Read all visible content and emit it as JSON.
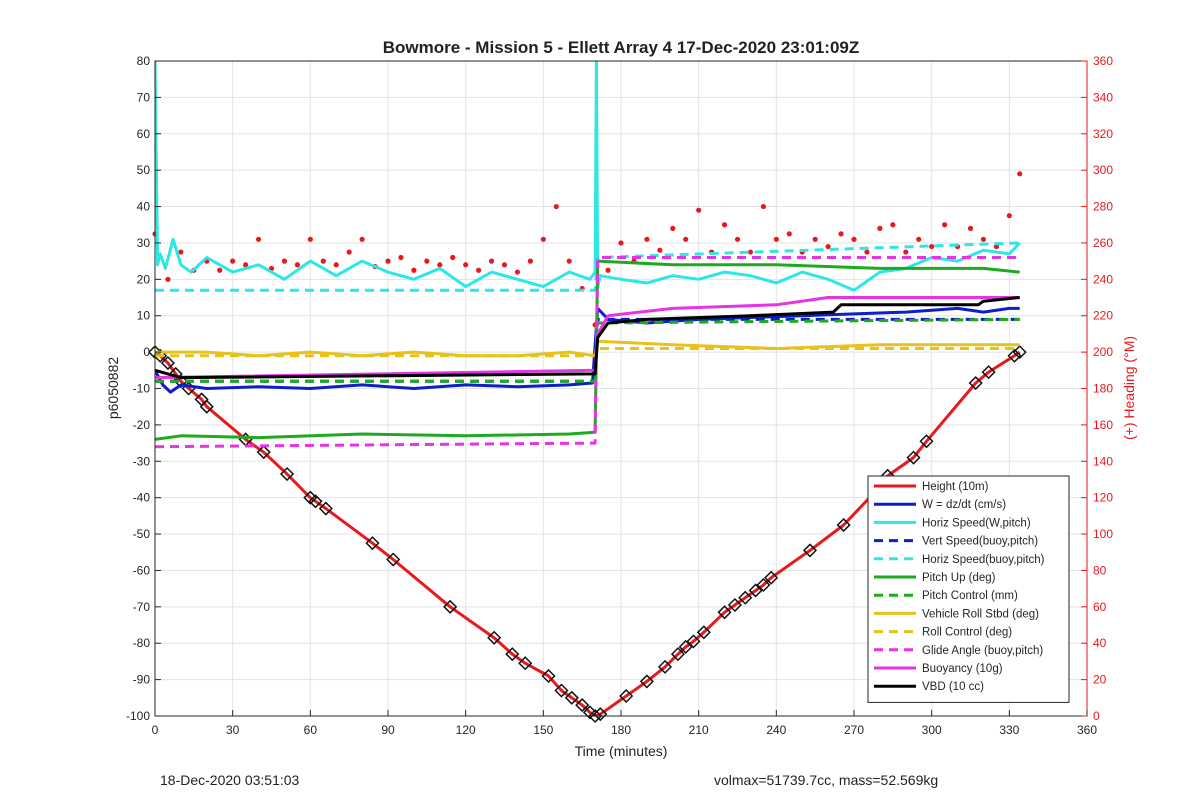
{
  "footer": {
    "timestamp": "18-Dec-2020 03:51:03",
    "stats": "volmax=51739.7cc, mass=52.569kg"
  },
  "chart_data": {
    "type": "line",
    "title": "Bowmore - Mission 5 - Ellett Array 4 17-Dec-2020 23:01:09Z",
    "xlabel": "Time (minutes)",
    "ylabel": "p6050882",
    "y2label": "(+) Heading (°M)",
    "xlim": [
      0,
      360
    ],
    "ylim": [
      -100,
      80
    ],
    "y2lim": [
      0,
      360
    ],
    "xticks": [
      0,
      30,
      60,
      90,
      120,
      150,
      180,
      210,
      240,
      270,
      300,
      330,
      360
    ],
    "yticks": [
      80,
      70,
      60,
      50,
      40,
      30,
      20,
      10,
      0,
      -10,
      -20,
      -30,
      -40,
      -50,
      -60,
      -70,
      -80,
      -90,
      -100
    ],
    "y2ticks": [
      360,
      340,
      320,
      300,
      280,
      260,
      240,
      220,
      200,
      180,
      160,
      140,
      120,
      100,
      80,
      60,
      40,
      20,
      0
    ],
    "grid": true,
    "legend_position": "bottom-right",
    "series": [
      {
        "name": "Height (10m)",
        "color": "#e8191c",
        "style": "solid",
        "marker": "diamond",
        "x": [
          0,
          2,
          5,
          8,
          10,
          13,
          18,
          20,
          35,
          42,
          51,
          60,
          62,
          66,
          84,
          92,
          114,
          131,
          138,
          143,
          152,
          157,
          161,
          165,
          168,
          170,
          172,
          182,
          190,
          197,
          202,
          205,
          208,
          212,
          220,
          224,
          228,
          232,
          235,
          238,
          253,
          266,
          280,
          283,
          293,
          298,
          317,
          322,
          332,
          334
        ],
        "y": [
          0,
          -1,
          -3,
          -6,
          -8,
          -10,
          -13,
          -15,
          -24,
          -27.5,
          -33.5,
          -40,
          -41,
          -43,
          -52.5,
          -57,
          -70,
          -78.5,
          -83,
          -85.5,
          -89,
          -93,
          -95,
          -97,
          -99,
          -100,
          -99.5,
          -94.5,
          -90.5,
          -86.5,
          -83,
          -81,
          -79.5,
          -77,
          -71.5,
          -69.5,
          -67.5,
          -65.5,
          -64,
          -62,
          -54.5,
          -47.5,
          -37,
          -34,
          -29,
          -24.5,
          -8.5,
          -5.5,
          -1,
          0
        ]
      },
      {
        "name": "W = dz/dt (cm/s)",
        "color": "#0c1fc8",
        "style": "solid",
        "x": [
          0,
          3,
          6,
          10,
          20,
          40,
          60,
          80,
          100,
          120,
          140,
          160,
          169,
          171,
          175,
          190,
          210,
          230,
          250,
          270,
          290,
          310,
          320,
          330,
          334
        ],
        "y": [
          -5,
          -9,
          -11,
          -9,
          -10,
          -9.5,
          -10,
          -9,
          -10,
          -9,
          -9.5,
          -9,
          -8.5,
          12,
          9,
          8,
          9,
          9.5,
          10,
          10.5,
          11,
          12,
          11,
          12,
          12
        ]
      },
      {
        "name": "Horiz Speed(W,pitch)",
        "color": "#2de6e6",
        "style": "solid",
        "x": [
          0,
          1,
          2,
          4,
          7,
          10,
          14,
          20,
          30,
          40,
          50,
          60,
          70,
          80,
          90,
          100,
          110,
          120,
          130,
          140,
          150,
          160,
          168,
          170,
          170.5,
          171,
          172,
          180,
          190,
          200,
          210,
          220,
          230,
          240,
          250,
          260,
          270,
          280,
          290,
          300,
          310,
          320,
          330,
          334
        ],
        "y": [
          80,
          24,
          27,
          23,
          31,
          24,
          22,
          26,
          22,
          24,
          20,
          25,
          21,
          25,
          22,
          20,
          23,
          18,
          22,
          20,
          18,
          22,
          20,
          22,
          80,
          18,
          21,
          20,
          19,
          21,
          20,
          22,
          21,
          19,
          22,
          20,
          17,
          22,
          23,
          26,
          25,
          28,
          27,
          30
        ]
      },
      {
        "name": "Vert Speed(buoy,pitch)",
        "color": "#0c1fc8",
        "style": "dashed",
        "x": [
          0,
          170,
          171,
          334
        ],
        "y": [
          -8,
          -8,
          9,
          9
        ]
      },
      {
        "name": "Horiz Speed(buoy,pitch)",
        "color": "#2de6e6",
        "style": "dashed",
        "x": [
          0,
          170,
          171,
          334
        ],
        "y": [
          17,
          17,
          26,
          30
        ]
      },
      {
        "name": "Pitch Up (deg)",
        "color": "#1eaa1e",
        "style": "solid",
        "x": [
          0,
          10,
          40,
          80,
          120,
          160,
          170,
          171,
          200,
          240,
          280,
          320,
          334
        ],
        "y": [
          -24,
          -23,
          -23.5,
          -22.5,
          -23,
          -22.5,
          -22,
          25,
          24,
          24,
          23,
          23,
          22
        ]
      },
      {
        "name": "Pitch Control (mm)",
        "color": "#1eaa1e",
        "style": "dashed",
        "x": [
          0,
          170,
          171,
          334
        ],
        "y": [
          -8,
          -8,
          8,
          9
        ]
      },
      {
        "name": "Vehicle Roll Stbd (deg)",
        "color": "#e6c21a",
        "style": "solid",
        "x": [
          0,
          20,
          40,
          60,
          80,
          100,
          120,
          140,
          160,
          170,
          171,
          200,
          240,
          280,
          320,
          334
        ],
        "y": [
          0,
          0,
          -1,
          0,
          -1,
          0,
          -1,
          -1,
          0,
          -1,
          3,
          2,
          1,
          2,
          2,
          2
        ]
      },
      {
        "name": "Roll Control (deg)",
        "color": "#e6c21a",
        "style": "dashed",
        "x": [
          0,
          170,
          171,
          334
        ],
        "y": [
          -1,
          -1,
          1,
          1
        ]
      },
      {
        "name": "Glide Angle (buoy,pitch)",
        "color": "#e633e6",
        "style": "dashed",
        "x": [
          0,
          170,
          171,
          334
        ],
        "y": [
          -26,
          -25,
          26,
          26
        ]
      },
      {
        "name": "Buoyancy (10g)",
        "color": "#e633e6",
        "style": "solid",
        "x": [
          0,
          170,
          171,
          175,
          200,
          240,
          260,
          334
        ],
        "y": [
          -7,
          -5,
          5,
          10,
          12,
          13,
          15,
          15
        ]
      },
      {
        "name": "VBD (10 cc)",
        "color": "#000000",
        "style": "solid",
        "x": [
          0,
          5,
          10,
          170,
          171,
          175,
          190,
          230,
          262,
          265,
          318,
          320,
          334
        ],
        "y": [
          -5,
          -6,
          -7,
          -6,
          4,
          8,
          9,
          10,
          11,
          13,
          13,
          14,
          15
        ]
      }
    ],
    "heading_series": {
      "name": "Heading",
      "color": "#e8191c",
      "axis": "right",
      "x": [
        0,
        5,
        10,
        15,
        20,
        25,
        30,
        35,
        40,
        45,
        50,
        55,
        60,
        65,
        70,
        75,
        80,
        85,
        90,
        95,
        100,
        105,
        110,
        115,
        120,
        125,
        130,
        135,
        140,
        145,
        150,
        155,
        160,
        165,
        170,
        175,
        180,
        185,
        190,
        195,
        200,
        205,
        210,
        215,
        220,
        225,
        230,
        235,
        240,
        245,
        250,
        255,
        260,
        265,
        270,
        275,
        280,
        285,
        290,
        295,
        300,
        305,
        310,
        315,
        320,
        325,
        330,
        334
      ],
      "y": [
        265,
        240,
        255,
        245,
        250,
        245,
        250,
        248,
        262,
        246,
        250,
        248,
        262,
        250,
        248,
        255,
        262,
        247,
        250,
        252,
        245,
        250,
        248,
        252,
        248,
        245,
        250,
        248,
        244,
        250,
        262,
        280,
        250,
        235,
        215,
        245,
        260,
        250,
        262,
        256,
        268,
        262,
        278,
        255,
        270,
        262,
        255,
        280,
        262,
        265,
        255,
        262,
        258,
        265,
        262,
        255,
        268,
        270,
        255,
        262,
        258,
        270,
        258,
        268,
        262,
        258,
        275,
        298
      ]
    }
  }
}
